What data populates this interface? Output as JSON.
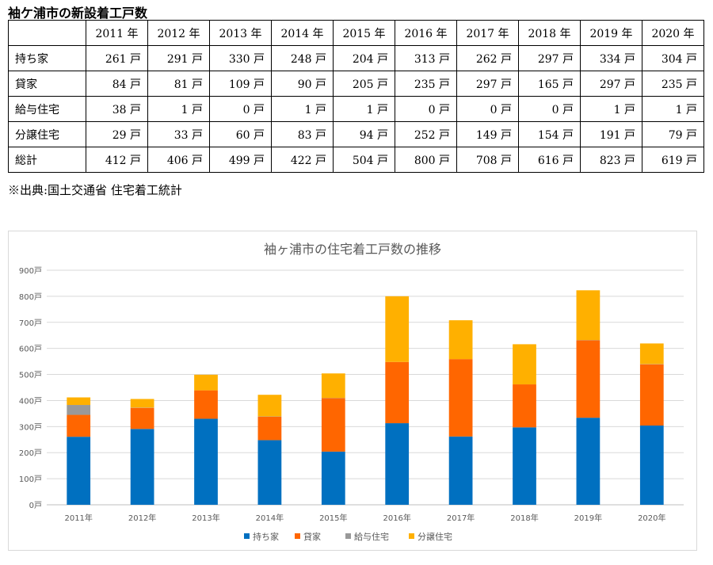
{
  "table": {
    "title": "袖ケ浦市の新設着工戸数",
    "years": [
      "2011 年",
      "2012 年",
      "2013 年",
      "2014 年",
      "2015 年",
      "2016 年",
      "2017 年",
      "2018 年",
      "2019 年",
      "2020 年"
    ],
    "rows": [
      {
        "label": "持ち家",
        "cells": [
          "261 戸",
          "291 戸",
          "330 戸",
          "248 戸",
          "204 戸",
          "313 戸",
          "262 戸",
          "297 戸",
          "334 戸",
          "304 戸"
        ]
      },
      {
        "label": "貸家",
        "cells": [
          "84 戸",
          "81 戸",
          "109 戸",
          "90 戸",
          "205 戸",
          "235 戸",
          "297 戸",
          "165 戸",
          "297 戸",
          "235 戸"
        ]
      },
      {
        "label": "給与住宅",
        "cells": [
          "38 戸",
          "1 戸",
          "0 戸",
          "1 戸",
          "1 戸",
          "0 戸",
          "0 戸",
          "0 戸",
          "1 戸",
          "1 戸"
        ]
      },
      {
        "label": "分譲住宅",
        "cells": [
          "29 戸",
          "33 戸",
          "60 戸",
          "83 戸",
          "94 戸",
          "252 戸",
          "149 戸",
          "154 戸",
          "191 戸",
          "79 戸"
        ]
      },
      {
        "label": "総計",
        "cells": [
          "412 戸",
          "406 戸",
          "499 戸",
          "422 戸",
          "504 戸",
          "800 戸",
          "708 戸",
          "616 戸",
          "823 戸",
          "619 戸"
        ]
      }
    ],
    "source": "※出典:国土交通省 住宅着工統計"
  },
  "chart_data": {
    "type": "bar",
    "stacked": true,
    "title": "袖ヶ浦市の住宅着工戸数の推移",
    "categories": [
      "2011年",
      "2012年",
      "2013年",
      "2014年",
      "2015年",
      "2016年",
      "2017年",
      "2018年",
      "2019年",
      "2020年"
    ],
    "series": [
      {
        "name": "持ち家",
        "color": "#0070C0",
        "values": [
          261,
          291,
          330,
          248,
          204,
          313,
          262,
          297,
          334,
          304
        ]
      },
      {
        "name": "貸家",
        "color": "#FF6600",
        "values": [
          84,
          81,
          109,
          90,
          205,
          235,
          297,
          165,
          297,
          235
        ]
      },
      {
        "name": "給与住宅",
        "color": "#999999",
        "values": [
          38,
          1,
          0,
          1,
          1,
          0,
          0,
          0,
          1,
          1
        ]
      },
      {
        "name": "分譲住宅",
        "color": "#FFB000",
        "values": [
          29,
          33,
          60,
          83,
          94,
          252,
          149,
          154,
          191,
          79
        ]
      }
    ],
    "ylim": [
      0,
      900
    ],
    "yticks": [
      "0戸",
      "100戸",
      "200戸",
      "300戸",
      "400戸",
      "500戸",
      "600戸",
      "700戸",
      "800戸",
      "900戸"
    ],
    "grid": true,
    "legend": "bottom"
  }
}
